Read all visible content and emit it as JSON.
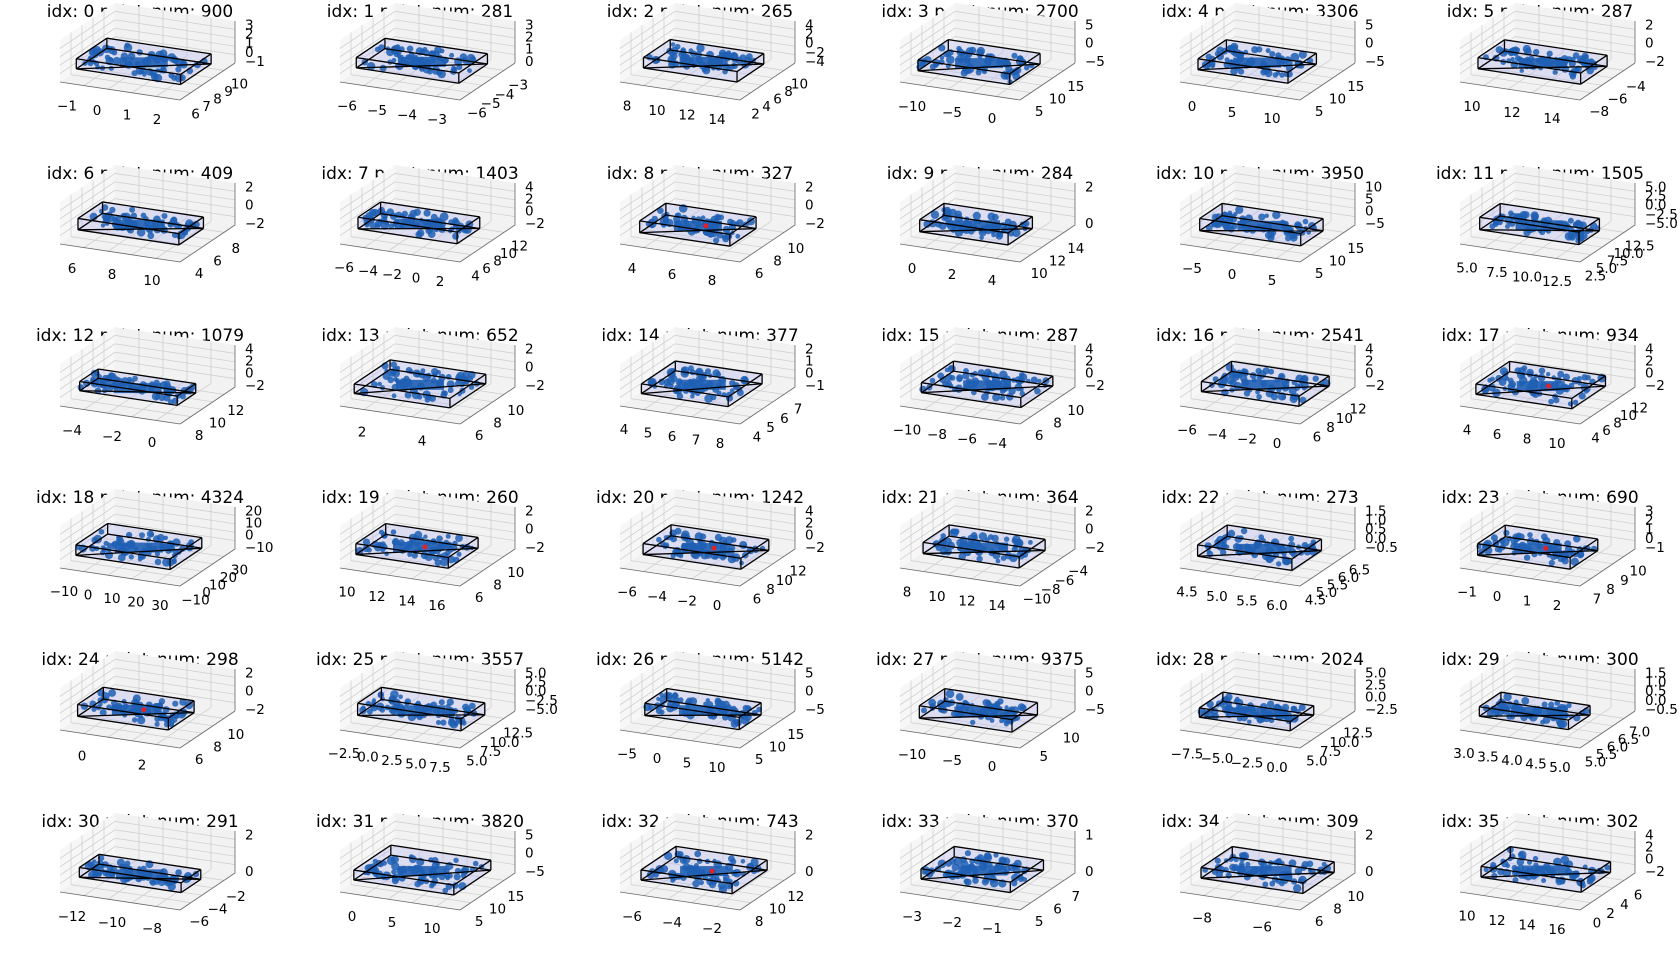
{
  "figure": {
    "background": "#ffffff",
    "point_color": "#1f5fb4",
    "box_color": "#000000",
    "box_fill": "#b8b8f0",
    "pane_color": "#f2f2f2",
    "grid_color": "#cccccc",
    "highlight_color": "#e0202a"
  },
  "chart_data": [
    {
      "type": "scatter",
      "title": "idx: 0 point_num: 900",
      "x_ticks": [
        "−1",
        "0",
        "1",
        "2"
      ],
      "y_ticks": [
        "6",
        "7",
        "8",
        "9",
        "10"
      ],
      "z_ticks": [
        "3",
        "2",
        "1",
        "0",
        "−1"
      ],
      "highlight": false
    },
    {
      "type": "scatter",
      "title": "idx: 1 point_num: 281",
      "x_ticks": [
        "−6",
        "−5",
        "−4",
        "−3"
      ],
      "y_ticks": [
        "−6",
        "−5",
        "−4",
        "−3"
      ],
      "z_ticks": [
        "3",
        "2",
        "1",
        "0"
      ],
      "highlight": false
    },
    {
      "type": "scatter",
      "title": "idx: 2 point_num: 265",
      "x_ticks": [
        "8",
        "10",
        "12",
        "14"
      ],
      "y_ticks": [
        "2",
        "4",
        "6",
        "8",
        "10"
      ],
      "z_ticks": [
        "4",
        "2",
        "0",
        "−2",
        "−4"
      ],
      "highlight": false
    },
    {
      "type": "scatter",
      "title": "idx: 3 point_num: 2700",
      "x_ticks": [
        "−10",
        "−5",
        "0"
      ],
      "y_ticks": [
        "5",
        "10",
        "15"
      ],
      "z_ticks": [
        "5",
        "0",
        "−5"
      ],
      "highlight": false
    },
    {
      "type": "scatter",
      "title": "idx: 4 point_num: 3306",
      "x_ticks": [
        "0",
        "5",
        "10"
      ],
      "y_ticks": [
        "5",
        "10",
        "15"
      ],
      "z_ticks": [
        "5",
        "0",
        "−5"
      ],
      "highlight": false
    },
    {
      "type": "scatter",
      "title": "idx: 5 point_num: 287",
      "x_ticks": [
        "10",
        "12",
        "14"
      ],
      "y_ticks": [
        "−8",
        "−6",
        "−4"
      ],
      "z_ticks": [
        "2",
        "0",
        "−2"
      ],
      "highlight": false
    },
    {
      "type": "scatter",
      "title": "idx: 6 point_num: 409",
      "x_ticks": [
        "6",
        "8",
        "10"
      ],
      "y_ticks": [
        "4",
        "6",
        "8"
      ],
      "z_ticks": [
        "2",
        "0",
        "−2"
      ],
      "highlight": false
    },
    {
      "type": "scatter",
      "title": "idx: 7 point_num: 1403",
      "x_ticks": [
        "−6",
        "−4",
        "−2",
        "0",
        "2"
      ],
      "y_ticks": [
        "4",
        "6",
        "8",
        "10",
        "12"
      ],
      "z_ticks": [
        "4",
        "2",
        "0",
        "−2"
      ],
      "highlight": false
    },
    {
      "type": "scatter",
      "title": "idx: 8 point_num: 327",
      "x_ticks": [
        "4",
        "6",
        "8"
      ],
      "y_ticks": [
        "6",
        "8",
        "10"
      ],
      "z_ticks": [
        "2",
        "0",
        "−2"
      ],
      "highlight": true
    },
    {
      "type": "scatter",
      "title": "idx: 9 point_num: 284",
      "x_ticks": [
        "0",
        "2",
        "4"
      ],
      "y_ticks": [
        "10",
        "12",
        "14"
      ],
      "z_ticks": [
        "2",
        "0"
      ],
      "highlight": false
    },
    {
      "type": "scatter",
      "title": "idx: 10 point_num: 3950",
      "x_ticks": [
        "−5",
        "0",
        "5"
      ],
      "y_ticks": [
        "5",
        "10",
        "15"
      ],
      "z_ticks": [
        "10",
        "5",
        "0",
        "−5"
      ],
      "highlight": false
    },
    {
      "type": "scatter",
      "title": "idx: 11 point_num: 1505",
      "x_ticks": [
        "5.0",
        "7.5",
        "10.0",
        "12.5"
      ],
      "y_ticks": [
        "2.5",
        "5.0",
        "7.5",
        "10.0",
        "12.5"
      ],
      "z_ticks": [
        "5.0",
        "2.5",
        "0.0",
        "−2.5",
        "−5.0"
      ],
      "highlight": false
    },
    {
      "type": "scatter",
      "title": "idx: 12 point_num: 1079",
      "x_ticks": [
        "−4",
        "−2",
        "0"
      ],
      "y_ticks": [
        "8",
        "10",
        "12"
      ],
      "z_ticks": [
        "4",
        "2",
        "0",
        "−2"
      ],
      "highlight": false
    },
    {
      "type": "scatter",
      "title": "idx: 13 point_num: 652",
      "x_ticks": [
        "2",
        "4"
      ],
      "y_ticks": [
        "6",
        "8",
        "10"
      ],
      "z_ticks": [
        "2",
        "0",
        "−2"
      ],
      "highlight": false
    },
    {
      "type": "scatter",
      "title": "idx: 14 point_num: 377",
      "x_ticks": [
        "4",
        "5",
        "6",
        "7",
        "8"
      ],
      "y_ticks": [
        "4",
        "5",
        "6",
        "7"
      ],
      "z_ticks": [
        "2",
        "1",
        "0",
        "−1"
      ],
      "highlight": false
    },
    {
      "type": "scatter",
      "title": "idx: 15 point_num: 287",
      "x_ticks": [
        "−10",
        "−8",
        "−6",
        "−4"
      ],
      "y_ticks": [
        "6",
        "8",
        "10"
      ],
      "z_ticks": [
        "4",
        "2",
        "0",
        "−2"
      ],
      "highlight": false
    },
    {
      "type": "scatter",
      "title": "idx: 16 point_num: 2541",
      "x_ticks": [
        "−6",
        "−4",
        "−2",
        "0"
      ],
      "y_ticks": [
        "6",
        "8",
        "10",
        "12"
      ],
      "z_ticks": [
        "4",
        "2",
        "0",
        "−2"
      ],
      "highlight": false
    },
    {
      "type": "scatter",
      "title": "idx: 17 point_num: 934",
      "x_ticks": [
        "4",
        "6",
        "8",
        "10"
      ],
      "y_ticks": [
        "4",
        "6",
        "8",
        "10",
        "12"
      ],
      "z_ticks": [
        "4",
        "2",
        "0",
        "−2"
      ],
      "highlight": true
    },
    {
      "type": "scatter",
      "title": "idx: 18 point_num: 4324",
      "x_ticks": [
        "−10",
        "0",
        "10",
        "20",
        "30"
      ],
      "y_ticks": [
        "−10",
        "0",
        "10",
        "20",
        "30"
      ],
      "z_ticks": [
        "20",
        "10",
        "0",
        "−10"
      ],
      "highlight": false
    },
    {
      "type": "scatter",
      "title": "idx: 19 point_num: 260",
      "x_ticks": [
        "10",
        "12",
        "14",
        "16"
      ],
      "y_ticks": [
        "6",
        "8",
        "10"
      ],
      "z_ticks": [
        "2",
        "0",
        "−2"
      ],
      "highlight": true
    },
    {
      "type": "scatter",
      "title": "idx: 20 point_num: 1242",
      "x_ticks": [
        "−6",
        "−4",
        "−2",
        "0"
      ],
      "y_ticks": [
        "6",
        "8",
        "10",
        "12"
      ],
      "z_ticks": [
        "4",
        "2",
        "0",
        "−2"
      ],
      "highlight": true
    },
    {
      "type": "scatter",
      "title": "idx: 21 point_num: 364",
      "x_ticks": [
        "8",
        "10",
        "12",
        "14"
      ],
      "y_ticks": [
        "−10",
        "−8",
        "−6",
        "−4"
      ],
      "z_ticks": [
        "2",
        "0",
        "−2"
      ],
      "highlight": false
    },
    {
      "type": "scatter",
      "title": "idx: 22 point_num: 273",
      "x_ticks": [
        "4.5",
        "5.0",
        "5.5",
        "6.0"
      ],
      "y_ticks": [
        "4.5",
        "5.0",
        "5.5",
        "6.0",
        "6.5"
      ],
      "z_ticks": [
        "1.5",
        "1.0",
        "0.5",
        "0.0",
        "−0.5"
      ],
      "highlight": false
    },
    {
      "type": "scatter",
      "title": "idx: 23 point_num: 690",
      "x_ticks": [
        "−1",
        "0",
        "1",
        "2"
      ],
      "y_ticks": [
        "7",
        "8",
        "9",
        "10"
      ],
      "z_ticks": [
        "3",
        "2",
        "1",
        "0",
        "−1"
      ],
      "highlight": true
    },
    {
      "type": "scatter",
      "title": "idx: 24 point_num: 298",
      "x_ticks": [
        "0",
        "2"
      ],
      "y_ticks": [
        "6",
        "8",
        "10"
      ],
      "z_ticks": [
        "2",
        "0",
        "−2"
      ],
      "highlight": true
    },
    {
      "type": "scatter",
      "title": "idx: 25 point_num: 3557",
      "x_ticks": [
        "−2.5",
        "0.0",
        "2.5",
        "5.0",
        "7.5"
      ],
      "y_ticks": [
        "5.0",
        "7.5",
        "10.0",
        "12.5"
      ],
      "z_ticks": [
        "5.0",
        "2.5",
        "0.0",
        "−2.5",
        "−5.0"
      ],
      "highlight": false
    },
    {
      "type": "scatter",
      "title": "idx: 26 point_num: 5142",
      "x_ticks": [
        "−5",
        "0",
        "5",
        "10"
      ],
      "y_ticks": [
        "5",
        "10",
        "15"
      ],
      "z_ticks": [
        "5",
        "0",
        "−5"
      ],
      "highlight": false
    },
    {
      "type": "scatter",
      "title": "idx: 27 point_num: 9375",
      "x_ticks": [
        "−10",
        "−5",
        "0"
      ],
      "y_ticks": [
        "5",
        "10"
      ],
      "z_ticks": [
        "5",
        "0",
        "−5"
      ],
      "highlight": false
    },
    {
      "type": "scatter",
      "title": "idx: 28 point_num: 2024",
      "x_ticks": [
        "−7.5",
        "−5.0",
        "−2.5",
        "0.0"
      ],
      "y_ticks": [
        "5.0",
        "7.5",
        "10.0",
        "12.5"
      ],
      "z_ticks": [
        "5.0",
        "2.5",
        "0.0",
        "−2.5"
      ],
      "highlight": false
    },
    {
      "type": "scatter",
      "title": "idx: 29 point_num: 300",
      "x_ticks": [
        "3.0",
        "3.5",
        "4.0",
        "4.5",
        "5.0"
      ],
      "y_ticks": [
        "5.0",
        "5.5",
        "6.0",
        "6.5",
        "7.0"
      ],
      "z_ticks": [
        "1.5",
        "1.0",
        "0.5",
        "0.0",
        "−0.5"
      ],
      "highlight": false
    },
    {
      "type": "scatter",
      "title": "idx: 30 point_num: 291",
      "x_ticks": [
        "−12",
        "−10",
        "−8"
      ],
      "y_ticks": [
        "−6",
        "−4",
        "−2"
      ],
      "z_ticks": [
        "2",
        "0"
      ],
      "highlight": false
    },
    {
      "type": "scatter",
      "title": "idx: 31 point_num: 3820",
      "x_ticks": [
        "0",
        "5",
        "10"
      ],
      "y_ticks": [
        "5",
        "10",
        "15"
      ],
      "z_ticks": [
        "5",
        "0",
        "−5"
      ],
      "highlight": false
    },
    {
      "type": "scatter",
      "title": "idx: 32 point_num: 743",
      "x_ticks": [
        "−6",
        "−4",
        "−2"
      ],
      "y_ticks": [
        "8",
        "10",
        "12"
      ],
      "z_ticks": [
        "2",
        "0"
      ],
      "highlight": true
    },
    {
      "type": "scatter",
      "title": "idx: 33 point_num: 370",
      "x_ticks": [
        "−3",
        "−2",
        "−1"
      ],
      "y_ticks": [
        "5",
        "6",
        "7"
      ],
      "z_ticks": [
        "1",
        "0"
      ],
      "highlight": false
    },
    {
      "type": "scatter",
      "title": "idx: 34 point_num: 309",
      "x_ticks": [
        "−8",
        "−6"
      ],
      "y_ticks": [
        "6",
        "8",
        "10"
      ],
      "z_ticks": [
        "2",
        "0"
      ],
      "highlight": false
    },
    {
      "type": "scatter",
      "title": "idx: 35 point_num: 302",
      "x_ticks": [
        "10",
        "12",
        "14",
        "16"
      ],
      "y_ticks": [
        "0",
        "2",
        "4",
        "6"
      ],
      "z_ticks": [
        "4",
        "2",
        "0",
        "−2"
      ],
      "highlight": false
    }
  ]
}
